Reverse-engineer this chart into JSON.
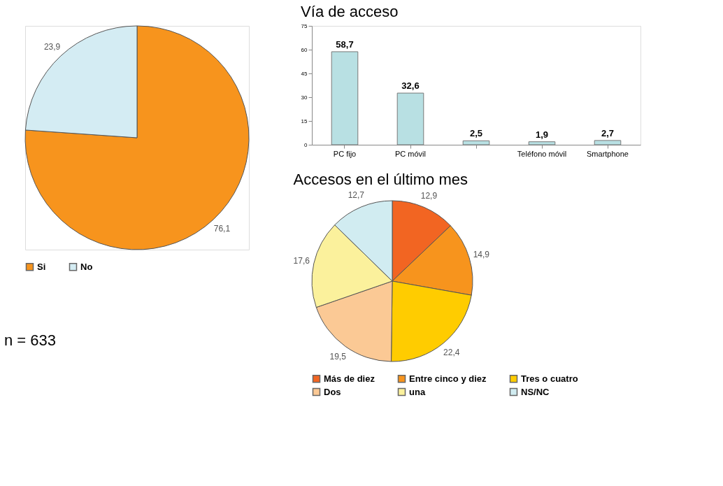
{
  "chart_data": [
    {
      "type": "pie",
      "categories": [
        "Si",
        "No"
      ],
      "values": [
        76.1,
        23.9
      ],
      "colors": [
        "#f7941d",
        "#d4ecf3"
      ],
      "value_labels": [
        "76,1",
        "23,9"
      ],
      "legend": "bottom",
      "annotations": [
        "n = 633"
      ]
    },
    {
      "type": "bar",
      "title": "Vía de acceso",
      "categories": [
        "PC fijo",
        "PC móvil",
        null,
        "Teléfono móvil",
        "Smartphone"
      ],
      "values": [
        58.7,
        32.6,
        2.5,
        1.9,
        2.7
      ],
      "color": "#b8e0e3",
      "ylim": [
        0,
        75
      ],
      "yticks": [
        0,
        15,
        30,
        45,
        60,
        75
      ],
      "value_labels": [
        "58,7",
        "32,6",
        "2,5",
        "1,9",
        "2,7"
      ]
    },
    {
      "type": "pie",
      "title": "Accesos en el último mes",
      "categories": [
        "Más de diez",
        "Entre cinco y diez",
        "Tres o cuatro",
        "Dos",
        "una",
        "NS/NC"
      ],
      "values": [
        12.9,
        14.9,
        22.4,
        19.5,
        17.6,
        12.7
      ],
      "colors": [
        "#f26522",
        "#f7941d",
        "#ffcc00",
        "#fbc995",
        "#fbf19c",
        "#d1ecf1"
      ],
      "value_labels": [
        "12,9",
        "14,9",
        "22,4",
        "19,5",
        "17,6",
        "12,7"
      ],
      "legend": "bottom"
    }
  ]
}
